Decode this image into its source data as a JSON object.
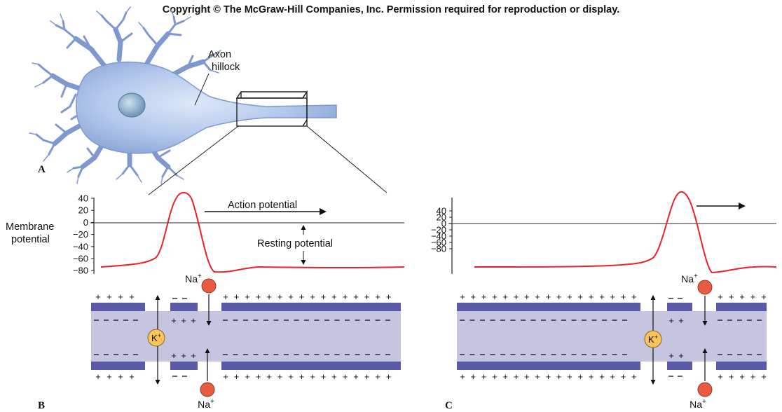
{
  "copyright": "Copyright © The McGraw-Hill Companies, Inc. Permission required for reproduction or display.",
  "panels": {
    "a": "A",
    "b": "B",
    "c": "C"
  },
  "neuron": {
    "hillock_label_line1": "Axon",
    "hillock_label_line2": "hillock"
  },
  "graph_b": {
    "ylabel_line1": "Membrane",
    "ylabel_line2": "potential",
    "ticks": [
      "40",
      "20",
      "0",
      "−20",
      "−40",
      "−60",
      "−80"
    ],
    "action_label": "Action potential",
    "resting_label": "Resting potential"
  },
  "graph_c": {
    "ticks": [
      "40",
      "20",
      "0",
      "−20",
      "−40",
      "−60",
      "−80"
    ]
  },
  "ions": {
    "na": "Na",
    "k": "K",
    "plus": "+"
  },
  "colors": {
    "membrane": "#5a5aa8",
    "axoplasm": "#c5c5e0",
    "trace": "#e8222a",
    "na_ion": "#e85a42",
    "k_ion": "#f7c35a",
    "neuron": "#a9bfe6"
  }
}
